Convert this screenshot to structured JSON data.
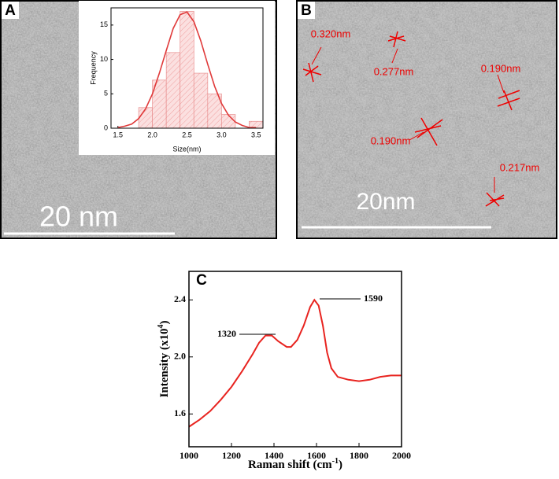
{
  "panels": {
    "a_label": "A",
    "a_scale": "20 nm",
    "b_label": "B",
    "b_scale": "20nm",
    "c_label": "C",
    "b_spacings": [
      "0.320nm",
      "0.277nm",
      "0.190nm",
      "0.190nm",
      "0.217nm"
    ]
  },
  "chart_data": [
    {
      "type": "histogram",
      "x_label": "Size(nm)",
      "y_label": "Frequency",
      "color": "#e03a3a",
      "bins": [
        1.8,
        2.0,
        2.2,
        2.4,
        2.6,
        2.8,
        3.0,
        3.2,
        3.4,
        3.6
      ],
      "values": [
        3,
        7,
        11,
        17,
        8,
        5,
        2,
        0,
        1
      ],
      "fit": {
        "x": [
          1.5,
          1.6,
          1.7,
          1.8,
          1.9,
          2.0,
          2.1,
          2.2,
          2.3,
          2.4,
          2.5,
          2.6,
          2.7,
          2.8,
          2.9,
          3.0,
          3.1,
          3.2,
          3.3,
          3.4,
          3.5
        ],
        "values": [
          0.1,
          0.3,
          0.6,
          1.4,
          2.8,
          5.0,
          8.0,
          11.3,
          14.5,
          16.5,
          16.9,
          15.5,
          12.7,
          9.3,
          6.1,
          3.6,
          1.9,
          0.9,
          0.4,
          0.1,
          0.1
        ]
      },
      "xlim": [
        1.4,
        3.6
      ],
      "ylim": [
        0,
        17.5
      ],
      "xticks": [
        1.5,
        {
          "value": 2,
          "label": "2.0"
        },
        2.5,
        {
          "value": 3,
          "label": "3.0"
        },
        3.5
      ],
      "yticks": [
        0,
        5,
        10,
        15
      ]
    },
    {
      "type": "line",
      "x_label": [
        "Raman shift (cm",
        "-1",
        ")"
      ],
      "y_label": [
        "Intensity (x10",
        "4",
        ")"
      ],
      "color": "#e8231f",
      "x": [
        1000,
        1050,
        1100,
        1150,
        1200,
        1250,
        1300,
        1330,
        1360,
        1390,
        1420,
        1460,
        1480,
        1510,
        1540,
        1570,
        1590,
        1610,
        1630,
        1650,
        1670,
        1700,
        1750,
        1800,
        1850,
        1900,
        1950,
        2000
      ],
      "values": [
        1.51,
        1.56,
        1.62,
        1.7,
        1.79,
        1.9,
        2.02,
        2.1,
        2.15,
        2.15,
        2.11,
        2.07,
        2.07,
        2.12,
        2.22,
        2.35,
        2.4,
        2.36,
        2.22,
        2.03,
        1.92,
        1.86,
        1.84,
        1.83,
        1.84,
        1.86,
        1.87,
        1.87
      ],
      "annotations": [
        "1320",
        "1590"
      ],
      "xlim": [
        1000,
        2000
      ],
      "ylim": [
        1.37,
        2.6
      ],
      "xticks": [
        1000,
        1200,
        1400,
        1600,
        1800,
        2000
      ],
      "yticks": [
        1.6,
        {
          "value": 2,
          "label": "2.0"
        },
        2.4
      ]
    }
  ]
}
